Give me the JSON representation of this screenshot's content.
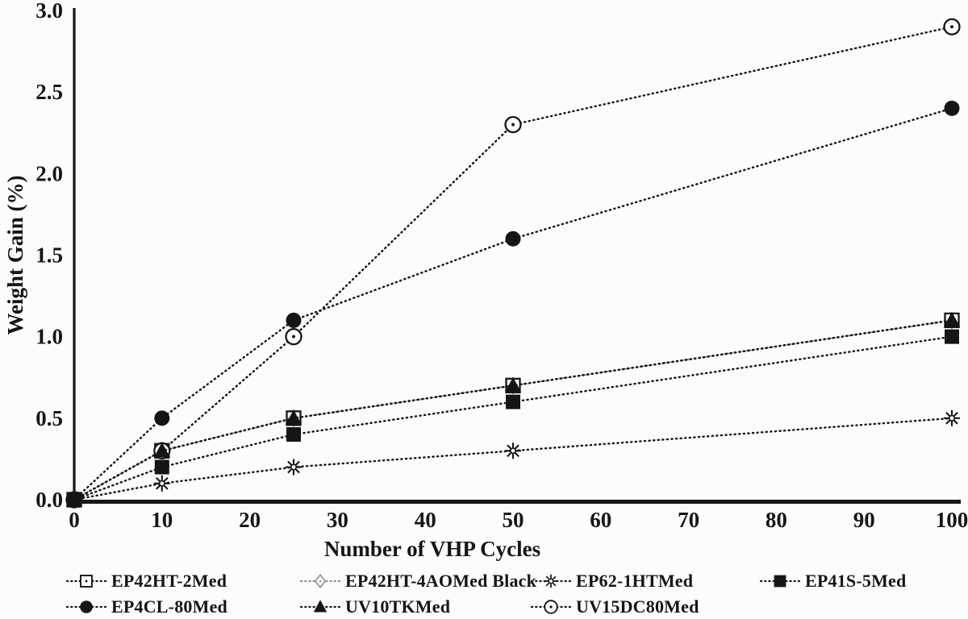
{
  "figure": {
    "background_color": "#fcfcfb",
    "ink_color": "#151515",
    "muted_line_color": "#8f8f8f"
  },
  "chart_data": {
    "type": "line",
    "title": "",
    "xlabel": "Number of VHP Cycles",
    "ylabel": "Weight Gain (%)",
    "xlim": [
      0,
      100
    ],
    "ylim": [
      0,
      3.0
    ],
    "xticks": [
      "0",
      "10",
      "20",
      "30",
      "40",
      "50",
      "60",
      "70",
      "80",
      "90",
      "100"
    ],
    "xtick_values": [
      0,
      10,
      20,
      30,
      40,
      50,
      60,
      70,
      80,
      90,
      100
    ],
    "yticks": [
      "0.0",
      "0.5",
      "1.0",
      "1.5",
      "2.0",
      "2.5",
      "3.0"
    ],
    "ytick_values": [
      0,
      0.5,
      1.0,
      1.5,
      2.0,
      2.5,
      3.0
    ],
    "grid": false,
    "line_style": "dotted",
    "legend_position": "bottom",
    "x": [
      0,
      10,
      25,
      50,
      100
    ],
    "series": [
      {
        "name": "EP42HT-2Med",
        "marker": "open-square-dot",
        "line_color": "#151515",
        "values": [
          0,
          0.3,
          0.5,
          0.7,
          1.1
        ]
      },
      {
        "name": "EP42HT-4AOMed Black",
        "marker": "open-diamond-dot",
        "line_color": "#8f8f8f",
        "values": [
          0,
          0.3,
          0.5,
          0.7,
          1.1
        ]
      },
      {
        "name": "EP62-1HTMed",
        "marker": "asterisk",
        "line_color": "#151515",
        "values": [
          0,
          0.1,
          0.2,
          0.3,
          0.5
        ]
      },
      {
        "name": "EP41S-5Med",
        "marker": "filled-square",
        "line_color": "#151515",
        "values": [
          0,
          0.2,
          0.4,
          0.6,
          1.0
        ]
      },
      {
        "name": "EP4CL-80Med",
        "marker": "filled-circle",
        "line_color": "#151515",
        "values": [
          0,
          0.5,
          1.1,
          1.6,
          2.4
        ]
      },
      {
        "name": "UV10TKMed",
        "marker": "filled-triangle",
        "line_color": "#151515",
        "values": [
          0,
          0.3,
          0.5,
          0.7,
          1.1
        ]
      },
      {
        "name": "UV15DC80Med",
        "marker": "open-circle-dot",
        "line_color": "#151515",
        "values": [
          0,
          0.3,
          1.0,
          2.3,
          2.9
        ]
      }
    ],
    "legend_rows": [
      [
        "EP42HT-2Med",
        "EP42HT-4AOMed Black",
        "EP62-1HTMed",
        "EP41S-5Med"
      ],
      [
        "EP4CL-80Med",
        "UV10TKMed",
        "UV15DC80Med"
      ]
    ]
  }
}
